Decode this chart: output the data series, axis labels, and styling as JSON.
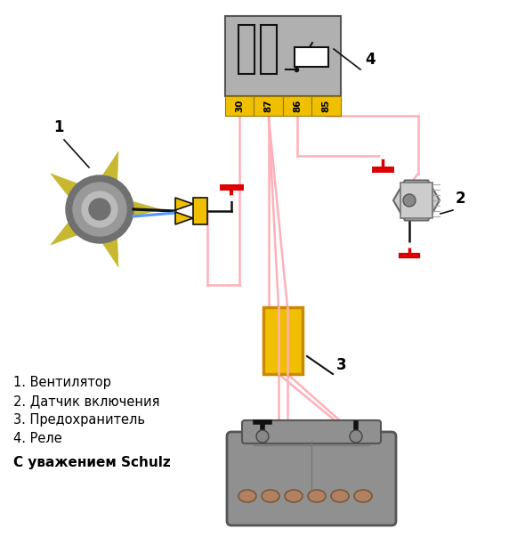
{
  "background_color": "#ffffff",
  "wire_pink": "#ffb0b8",
  "wire_red": "#dd0000",
  "wire_blue": "#5599ff",
  "wire_black": "#111111",
  "relay_body": "#b0b0b0",
  "relay_border": "#555555",
  "terminal_fill": "#f0c000",
  "terminal_border": "#997700",
  "fuse_fill": "#f0c000",
  "fuse_border": "#cc8800",
  "fan_blade": "#c8b830",
  "fan_hub_dark": "#707070",
  "fan_hub_mid": "#999999",
  "fan_hub_light": "#bbbbbb",
  "connector_fill": "#f0c000",
  "sensor_body": "#cccccc",
  "sensor_inner": "#aaaaaa",
  "sensor_bolt": "#aaaaaa",
  "battery_body": "#909090",
  "battery_border": "#555555",
  "battery_cell": "#b08060",
  "labels": {
    "legend1": "1. Вентилятор",
    "legend2": "2. Датчик включения",
    "legend3": "3. Предохранитель",
    "legend4": "4. Реле",
    "signature": "С уважением Schulz"
  },
  "terminals": [
    "30",
    "87",
    "86",
    "85"
  ],
  "figsize": [
    5.72,
    6.12
  ],
  "dpi": 100
}
